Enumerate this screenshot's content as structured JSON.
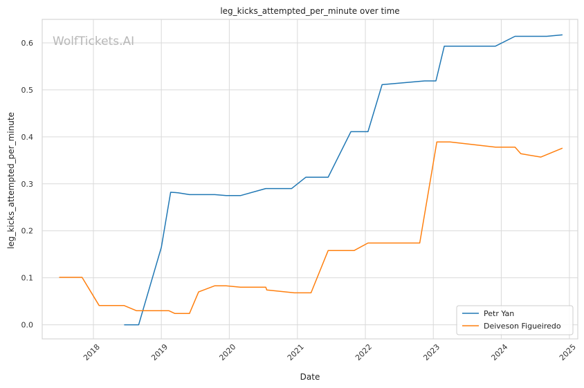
{
  "chart_data": {
    "type": "line",
    "title": "leg_kicks_attempted_per_minute over time",
    "xlabel": "Date",
    "ylabel": "leg_kicks_attempted_per_minute",
    "watermark": "WolfTickets.AI",
    "xlim": [
      "2017-04-01",
      "2025-02-15"
    ],
    "ylim": [
      -0.03,
      0.65
    ],
    "x_ticks": [
      "2018",
      "2019",
      "2020",
      "2021",
      "2022",
      "2023",
      "2024",
      "2025"
    ],
    "y_ticks": [
      "0.0",
      "0.1",
      "0.2",
      "0.3",
      "0.4",
      "0.5",
      "0.6"
    ],
    "grid": true,
    "legend_position": "bottom-right",
    "series": [
      {
        "name": "Petr Yan",
        "color": "#1f77b4",
        "points": [
          [
            "2018-06-15",
            0.0
          ],
          [
            "2018-09-01",
            0.0
          ],
          [
            "2019-01-01",
            0.165
          ],
          [
            "2019-02-20",
            0.282
          ],
          [
            "2019-04-01",
            0.281
          ],
          [
            "2019-06-01",
            0.277
          ],
          [
            "2019-10-15",
            0.277
          ],
          [
            "2019-12-15",
            0.275
          ],
          [
            "2020-03-01",
            0.275
          ],
          [
            "2020-07-15",
            0.29
          ],
          [
            "2020-12-01",
            0.29
          ],
          [
            "2021-02-15",
            0.314
          ],
          [
            "2021-06-15",
            0.314
          ],
          [
            "2021-10-15",
            0.411
          ],
          [
            "2022-01-15",
            0.411
          ],
          [
            "2022-04-01",
            0.511
          ],
          [
            "2022-11-15",
            0.519
          ],
          [
            "2023-01-15",
            0.519
          ],
          [
            "2023-03-01",
            0.593
          ],
          [
            "2023-12-01",
            0.593
          ],
          [
            "2024-03-15",
            0.614
          ],
          [
            "2024-09-01",
            0.614
          ],
          [
            "2024-11-25",
            0.617
          ]
        ]
      },
      {
        "name": "Deiveson Figueiredo",
        "color": "#ff7f0e",
        "points": [
          [
            "2017-07-01",
            0.101
          ],
          [
            "2017-11-01",
            0.101
          ],
          [
            "2018-02-01",
            0.041
          ],
          [
            "2018-06-15",
            0.041
          ],
          [
            "2018-08-20",
            0.03
          ],
          [
            "2019-02-10",
            0.03
          ],
          [
            "2019-03-15",
            0.024
          ],
          [
            "2019-06-01",
            0.024
          ],
          [
            "2019-07-20",
            0.07
          ],
          [
            "2019-10-15",
            0.083
          ],
          [
            "2019-12-15",
            0.083
          ],
          [
            "2020-03-01",
            0.08
          ],
          [
            "2020-07-15",
            0.08
          ],
          [
            "2020-07-20",
            0.074
          ],
          [
            "2020-11-01",
            0.07
          ],
          [
            "2020-12-15",
            0.068
          ],
          [
            "2021-03-15",
            0.068
          ],
          [
            "2021-06-15",
            0.158
          ],
          [
            "2021-11-01",
            0.158
          ],
          [
            "2022-01-15",
            0.174
          ],
          [
            "2022-10-20",
            0.174
          ],
          [
            "2023-01-20",
            0.389
          ],
          [
            "2023-04-01",
            0.389
          ],
          [
            "2023-12-01",
            0.378
          ],
          [
            "2024-03-15",
            0.378
          ],
          [
            "2024-04-15",
            0.364
          ],
          [
            "2024-08-01",
            0.357
          ],
          [
            "2024-11-25",
            0.376
          ]
        ]
      }
    ]
  }
}
